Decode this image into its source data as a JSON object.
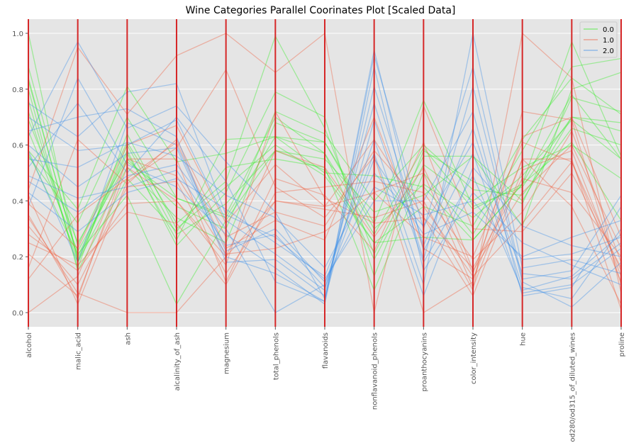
{
  "chart_data": {
    "type": "parallel-coordinates",
    "title": "Wine Categories Parallel Coorinates Plot [Scaled Data]",
    "axes": [
      "alcohol",
      "malic_acid",
      "ash",
      "alcalinity_of_ash",
      "magnesium",
      "total_phenols",
      "flavanoids",
      "nonflavanoid_phenols",
      "proanthocyanins",
      "color_intensity",
      "hue",
      "od280/od315_of_diluted_wines",
      "proline"
    ],
    "ylim": [
      -0.05,
      1.05
    ],
    "yticks": [
      "0.0",
      "0.2",
      "0.4",
      "0.6",
      "0.8",
      "1.0"
    ],
    "legend": {
      "placement": "top-right",
      "entries": [
        "0.0",
        "1.0",
        "2.0"
      ]
    },
    "colors": {
      "0.0": "#33ee22",
      "1.0": "#f0603f",
      "2.0": "#3d8fe8"
    },
    "series": [
      {
        "name": "0.0",
        "lines": [
          [
            0.84,
            0.19,
            0.57,
            0.26,
            0.62,
            0.63,
            0.57,
            0.28,
            0.59,
            0.37,
            0.46,
            0.97,
            0.56
          ],
          [
            0.57,
            0.21,
            0.42,
            0.03,
            0.33,
            0.58,
            0.51,
            0.25,
            0.27,
            0.26,
            0.46,
            0.78,
            0.55
          ],
          [
            0.56,
            0.32,
            0.7,
            0.41,
            0.34,
            0.63,
            0.61,
            0.32,
            0.76,
            0.38,
            0.45,
            0.7,
            0.65
          ],
          [
            0.88,
            0.24,
            0.61,
            0.32,
            0.47,
            0.99,
            0.66,
            0.21,
            0.56,
            0.56,
            0.31,
            0.8,
            0.86
          ],
          [
            0.58,
            0.37,
            0.81,
            0.54,
            0.57,
            0.63,
            0.5,
            0.49,
            0.45,
            0.26,
            0.46,
            0.61,
            0.33
          ],
          [
            0.83,
            0.2,
            0.58,
            0.24,
            0.43,
            0.79,
            0.7,
            0.13,
            0.58,
            0.47,
            0.39,
            0.77,
            0.72
          ],
          [
            0.72,
            0.18,
            0.52,
            0.34,
            0.25,
            0.68,
            0.61,
            0.3,
            0.46,
            0.34,
            0.49,
            0.69,
            0.55
          ],
          [
            1.0,
            0.18,
            0.6,
            0.28,
            0.39,
            0.58,
            0.55,
            0.36,
            0.42,
            0.56,
            0.4,
            0.7,
            0.68
          ],
          [
            0.65,
            0.22,
            0.54,
            0.41,
            0.35,
            0.7,
            0.57,
            0.19,
            0.53,
            0.4,
            0.52,
            0.6,
            0.48
          ],
          [
            0.76,
            0.16,
            0.64,
            0.3,
            0.45,
            0.6,
            0.49,
            0.25,
            0.38,
            0.31,
            0.62,
            0.84,
            0.71
          ],
          [
            0.69,
            0.25,
            0.55,
            0.38,
            0.3,
            0.72,
            0.64,
            0.4,
            0.6,
            0.44,
            0.42,
            0.66,
            0.6
          ],
          [
            0.8,
            0.15,
            0.48,
            0.29,
            0.52,
            0.55,
            0.52,
            0.08,
            0.5,
            0.28,
            0.58,
            0.88,
            0.91
          ]
        ]
      },
      {
        "name": "1.0",
        "lines": [
          [
            0.34,
            0.07,
            0.0,
            0.0,
            0.2,
            0.4,
            0.38,
            0.43,
            0.5,
            0.09,
            0.55,
            0.55,
            0.01
          ],
          [
            0.21,
            0.06,
            0.52,
            0.4,
            0.17,
            0.72,
            0.41,
            0.32,
            0.34,
            0.06,
            0.51,
            0.58,
            0.13
          ],
          [
            0.42,
            0.03,
            0.47,
            0.59,
            0.87,
            0.45,
            0.34,
            0.56,
            0.0,
            0.11,
            0.72,
            0.69,
            0.1
          ],
          [
            0.35,
            0.05,
            0.55,
            0.55,
            0.11,
            0.48,
            0.42,
            0.22,
            0.61,
            0.15,
            0.43,
            0.6,
            0.23
          ],
          [
            0.16,
            0.62,
            0.46,
            0.62,
            0.27,
            0.36,
            0.31,
            0.58,
            0.38,
            0.13,
            0.32,
            0.54,
            0.11
          ],
          [
            0.28,
            0.15,
            0.39,
            0.4,
            0.2,
            0.58,
            0.52,
            0.27,
            0.52,
            0.14,
            0.63,
            0.7,
            0.27
          ],
          [
            0.0,
            0.13,
            0.55,
            0.49,
            0.21,
            0.23,
            0.29,
            0.43,
            0.27,
            0.2,
            0.61,
            0.54,
            0.15
          ],
          [
            0.31,
            0.1,
            0.45,
            0.47,
            0.14,
            0.4,
            0.37,
            0.34,
            0.4,
            0.08,
            1.0,
            0.84,
            0.07
          ],
          [
            0.39,
            0.23,
            0.6,
            0.67,
            0.32,
            0.53,
            0.38,
            0.62,
            0.34,
            0.16,
            0.48,
            0.43,
            0.2
          ],
          [
            0.25,
            0.17,
            0.36,
            0.32,
            0.1,
            0.43,
            0.45,
            0.47,
            0.43,
            0.19,
            0.36,
            0.65,
            0.18
          ],
          [
            0.44,
            0.95,
            0.71,
            0.92,
            1.0,
            0.86,
            1.0,
            0.0,
            0.74,
            0.3,
            0.29,
            0.5,
            0.16
          ],
          [
            0.12,
            0.35,
            0.48,
            0.61,
            0.23,
            0.33,
            0.26,
            0.7,
            0.23,
            0.12,
            0.55,
            0.38,
            0.03
          ]
        ]
      },
      {
        "name": "2.0",
        "lines": [
          [
            0.6,
            0.45,
            0.57,
            0.59,
            0.2,
            0.14,
            0.04,
            0.94,
            0.22,
            0.57,
            0.07,
            0.1,
            0.23
          ],
          [
            0.7,
            0.58,
            0.6,
            0.69,
            0.33,
            0.21,
            0.08,
            0.75,
            0.19,
            0.81,
            0.11,
            0.02,
            0.18
          ],
          [
            0.49,
            0.41,
            0.45,
            0.51,
            0.24,
            0.28,
            0.09,
            0.55,
            0.28,
            0.36,
            0.2,
            0.27,
            0.33
          ],
          [
            0.63,
            0.97,
            0.66,
            0.74,
            0.54,
            0.36,
            0.05,
            0.69,
            0.18,
            0.49,
            0.08,
            0.13,
            0.28
          ],
          [
            0.47,
            0.36,
            0.49,
            0.53,
            0.3,
            0.0,
            0.1,
            0.62,
            0.1,
            1.0,
            0.16,
            0.19,
            0.14
          ],
          [
            0.75,
            0.63,
            0.79,
            0.82,
            0.35,
            0.27,
            0.12,
            0.4,
            0.4,
            0.72,
            0.06,
            0.09,
            0.38
          ],
          [
            0.38,
            0.84,
            0.53,
            0.45,
            0.28,
            0.16,
            0.03,
            0.88,
            0.15,
            0.43,
            0.25,
            0.17,
            0.1
          ],
          [
            0.55,
            0.52,
            0.61,
            0.56,
            0.42,
            0.34,
            0.16,
            0.5,
            0.31,
            0.61,
            0.14,
            0.12,
            0.25
          ],
          [
            0.65,
            0.7,
            0.73,
            0.63,
            0.18,
            0.19,
            0.06,
            0.81,
            0.24,
            0.66,
            0.09,
            0.05,
            0.3
          ],
          [
            0.43,
            0.29,
            0.43,
            0.48,
            0.37,
            0.25,
            0.13,
            0.57,
            0.06,
            0.52,
            0.31,
            0.24,
            0.2
          ],
          [
            0.52,
            0.75,
            0.5,
            0.7,
            0.47,
            0.11,
            0.04,
            0.92,
            0.3,
            0.88,
            0.12,
            0.15,
            0.42
          ],
          [
            0.58,
            0.18,
            0.68,
            0.6,
            0.22,
            0.3,
            0.11,
            0.45,
            0.35,
            0.4,
            0.19,
            0.21,
            0.27
          ]
        ]
      }
    ]
  }
}
